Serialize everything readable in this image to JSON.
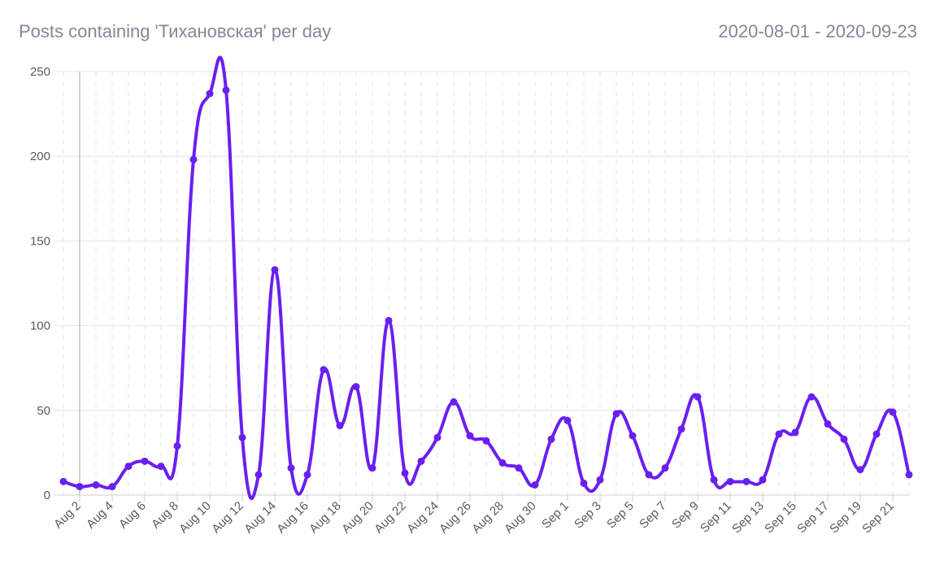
{
  "header": {
    "title": "Posts containing 'Тихановская' per day",
    "date_range": "2020-08-01 - 2020-09-23"
  },
  "chart_data": {
    "type": "line",
    "x_start": "2020-08-01",
    "x_end": "2020-09-23",
    "x": [
      "2020-08-01",
      "2020-08-02",
      "2020-08-03",
      "2020-08-04",
      "2020-08-05",
      "2020-08-06",
      "2020-08-07",
      "2020-08-08",
      "2020-08-09",
      "2020-08-10",
      "2020-08-11",
      "2020-08-12",
      "2020-08-13",
      "2020-08-14",
      "2020-08-15",
      "2020-08-16",
      "2020-08-17",
      "2020-08-18",
      "2020-08-19",
      "2020-08-20",
      "2020-08-21",
      "2020-08-22",
      "2020-08-23",
      "2020-08-24",
      "2020-08-25",
      "2020-08-26",
      "2020-08-27",
      "2020-08-28",
      "2020-08-29",
      "2020-08-30",
      "2020-08-31",
      "2020-09-01",
      "2020-09-02",
      "2020-09-03",
      "2020-09-04",
      "2020-09-05",
      "2020-09-06",
      "2020-09-07",
      "2020-09-08",
      "2020-09-09",
      "2020-09-10",
      "2020-09-11",
      "2020-09-12",
      "2020-09-13",
      "2020-09-14",
      "2020-09-15",
      "2020-09-16",
      "2020-09-17",
      "2020-09-18",
      "2020-09-19",
      "2020-09-20",
      "2020-09-21",
      "2020-09-22"
    ],
    "series": [
      {
        "values": [
          8,
          5,
          6,
          5,
          17,
          20,
          17,
          29,
          198,
          237,
          239,
          34,
          12,
          133,
          16,
          12,
          74,
          41,
          64,
          16,
          103,
          13,
          20,
          34,
          55,
          35,
          32,
          19,
          16,
          6,
          33,
          44,
          7,
          9,
          48,
          35,
          12,
          16,
          39,
          58,
          9,
          8,
          8,
          9,
          36,
          37,
          58,
          42,
          33,
          15,
          36,
          49,
          12
        ]
      }
    ],
    "x_tick_labels": [
      "Aug 2",
      "Aug 4",
      "Aug 6",
      "Aug 8",
      "Aug 10",
      "Aug 12",
      "Aug 14",
      "Aug 16",
      "Aug 18",
      "Aug 20",
      "Aug 22",
      "Aug 24",
      "Aug 26",
      "Aug 28",
      "Aug 30",
      "Sep 1",
      "Sep 3",
      "Sep 5",
      "Sep 7",
      "Sep 9",
      "Sep 11",
      "Sep 13",
      "Sep 15",
      "Sep 17",
      "Sep 19",
      "Sep 21"
    ],
    "y_ticks": [
      0,
      50,
      100,
      150,
      200,
      250
    ],
    "ylim": [
      0,
      250
    ],
    "grid": true,
    "line_color": "#6a1ff0",
    "grid_color": "#e4e4e4",
    "title": "Posts containing 'Тихановская' per day",
    "xlabel": "",
    "ylabel": ""
  }
}
